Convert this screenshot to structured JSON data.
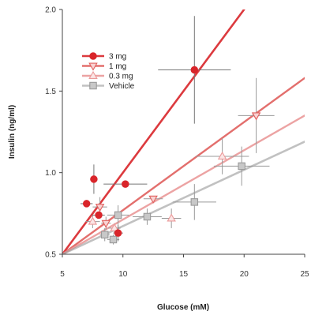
{
  "chart_data": {
    "type": "scatter",
    "xlabel": "Glucose (mM)",
    "ylabel": "Insulin (ng/ml)",
    "xlim": [
      5,
      25
    ],
    "ylim": [
      0.5,
      2.0
    ],
    "xticks": [
      "5",
      "10",
      "15",
      "20",
      "25"
    ],
    "yticks": [
      "0.5",
      "1.0",
      "1.5",
      "2.0"
    ],
    "legend_position": "top-left",
    "series": [
      {
        "name": "3 mg",
        "marker": "circle",
        "color": "#d9252a",
        "fill": "#d9252a",
        "line": {
          "x1": 5,
          "y1": 0.5,
          "x2": 20,
          "y2": 2.0
        },
        "points": [
          {
            "x": 7.0,
            "y": 0.81,
            "xerr": 0.5,
            "yerr": 0.0
          },
          {
            "x": 7.6,
            "y": 0.96,
            "xerr": 0.3,
            "yerr": 0.09
          },
          {
            "x": 8.0,
            "y": 0.74,
            "xerr": 0.5,
            "yerr": 0.0
          },
          {
            "x": 10.2,
            "y": 0.93,
            "xerr": 1.8,
            "yerr": 0.0
          },
          {
            "x": 9.6,
            "y": 0.63,
            "xerr": 0.4,
            "yerr": 0.05
          },
          {
            "x": 15.9,
            "y": 1.63,
            "xerr": 3.0,
            "yerr": 0.33
          }
        ]
      },
      {
        "name": "1 mg",
        "marker": "triangle-down",
        "color": "#e0605e",
        "fill": "#f8d3d3",
        "line": {
          "x1": 5,
          "y1": 0.5,
          "x2": 25,
          "y2": 1.58
        },
        "points": [
          {
            "x": 8.1,
            "y": 0.79,
            "xerr": 0.6,
            "yerr": 0.06
          },
          {
            "x": 8.6,
            "y": 0.69,
            "xerr": 0.4,
            "yerr": 0.04
          },
          {
            "x": 12.5,
            "y": 0.84,
            "xerr": 0.8,
            "yerr": 0.0
          },
          {
            "x": 21.0,
            "y": 1.35,
            "xerr": 1.5,
            "yerr": 0.23
          }
        ]
      },
      {
        "name": "0.3 mg",
        "marker": "triangle-up",
        "color": "#eb9a9a",
        "fill": "#fbe6e6",
        "line": {
          "x1": 5,
          "y1": 0.5,
          "x2": 25,
          "y2": 1.35
        },
        "points": [
          {
            "x": 7.5,
            "y": 0.7,
            "xerr": 0.6,
            "yerr": 0.04
          },
          {
            "x": 9.3,
            "y": 0.66,
            "xerr": 0.5,
            "yerr": 0.03
          },
          {
            "x": 14.0,
            "y": 0.72,
            "xerr": 0.8,
            "yerr": 0.06
          },
          {
            "x": 18.2,
            "y": 1.1,
            "xerr": 2.2,
            "yerr": 0.11
          }
        ]
      },
      {
        "name": "Vehicle",
        "marker": "square",
        "color": "#999999",
        "fill": "#c8c8c8",
        "line": {
          "x1": 5,
          "y1": 0.5,
          "x2": 25,
          "y2": 1.19
        },
        "points": [
          {
            "x": 8.5,
            "y": 0.62,
            "xerr": 0.4,
            "yerr": 0.04
          },
          {
            "x": 9.2,
            "y": 0.59,
            "xerr": 0.5,
            "yerr": 0.03
          },
          {
            "x": 9.6,
            "y": 0.74,
            "xerr": 0.9,
            "yerr": 0.06
          },
          {
            "x": 12.0,
            "y": 0.73,
            "xerr": 1.2,
            "yerr": 0.05
          },
          {
            "x": 15.9,
            "y": 0.82,
            "xerr": 1.8,
            "yerr": 0.11
          },
          {
            "x": 19.8,
            "y": 1.04,
            "xerr": 2.3,
            "yerr": 0.12
          }
        ]
      }
    ]
  }
}
